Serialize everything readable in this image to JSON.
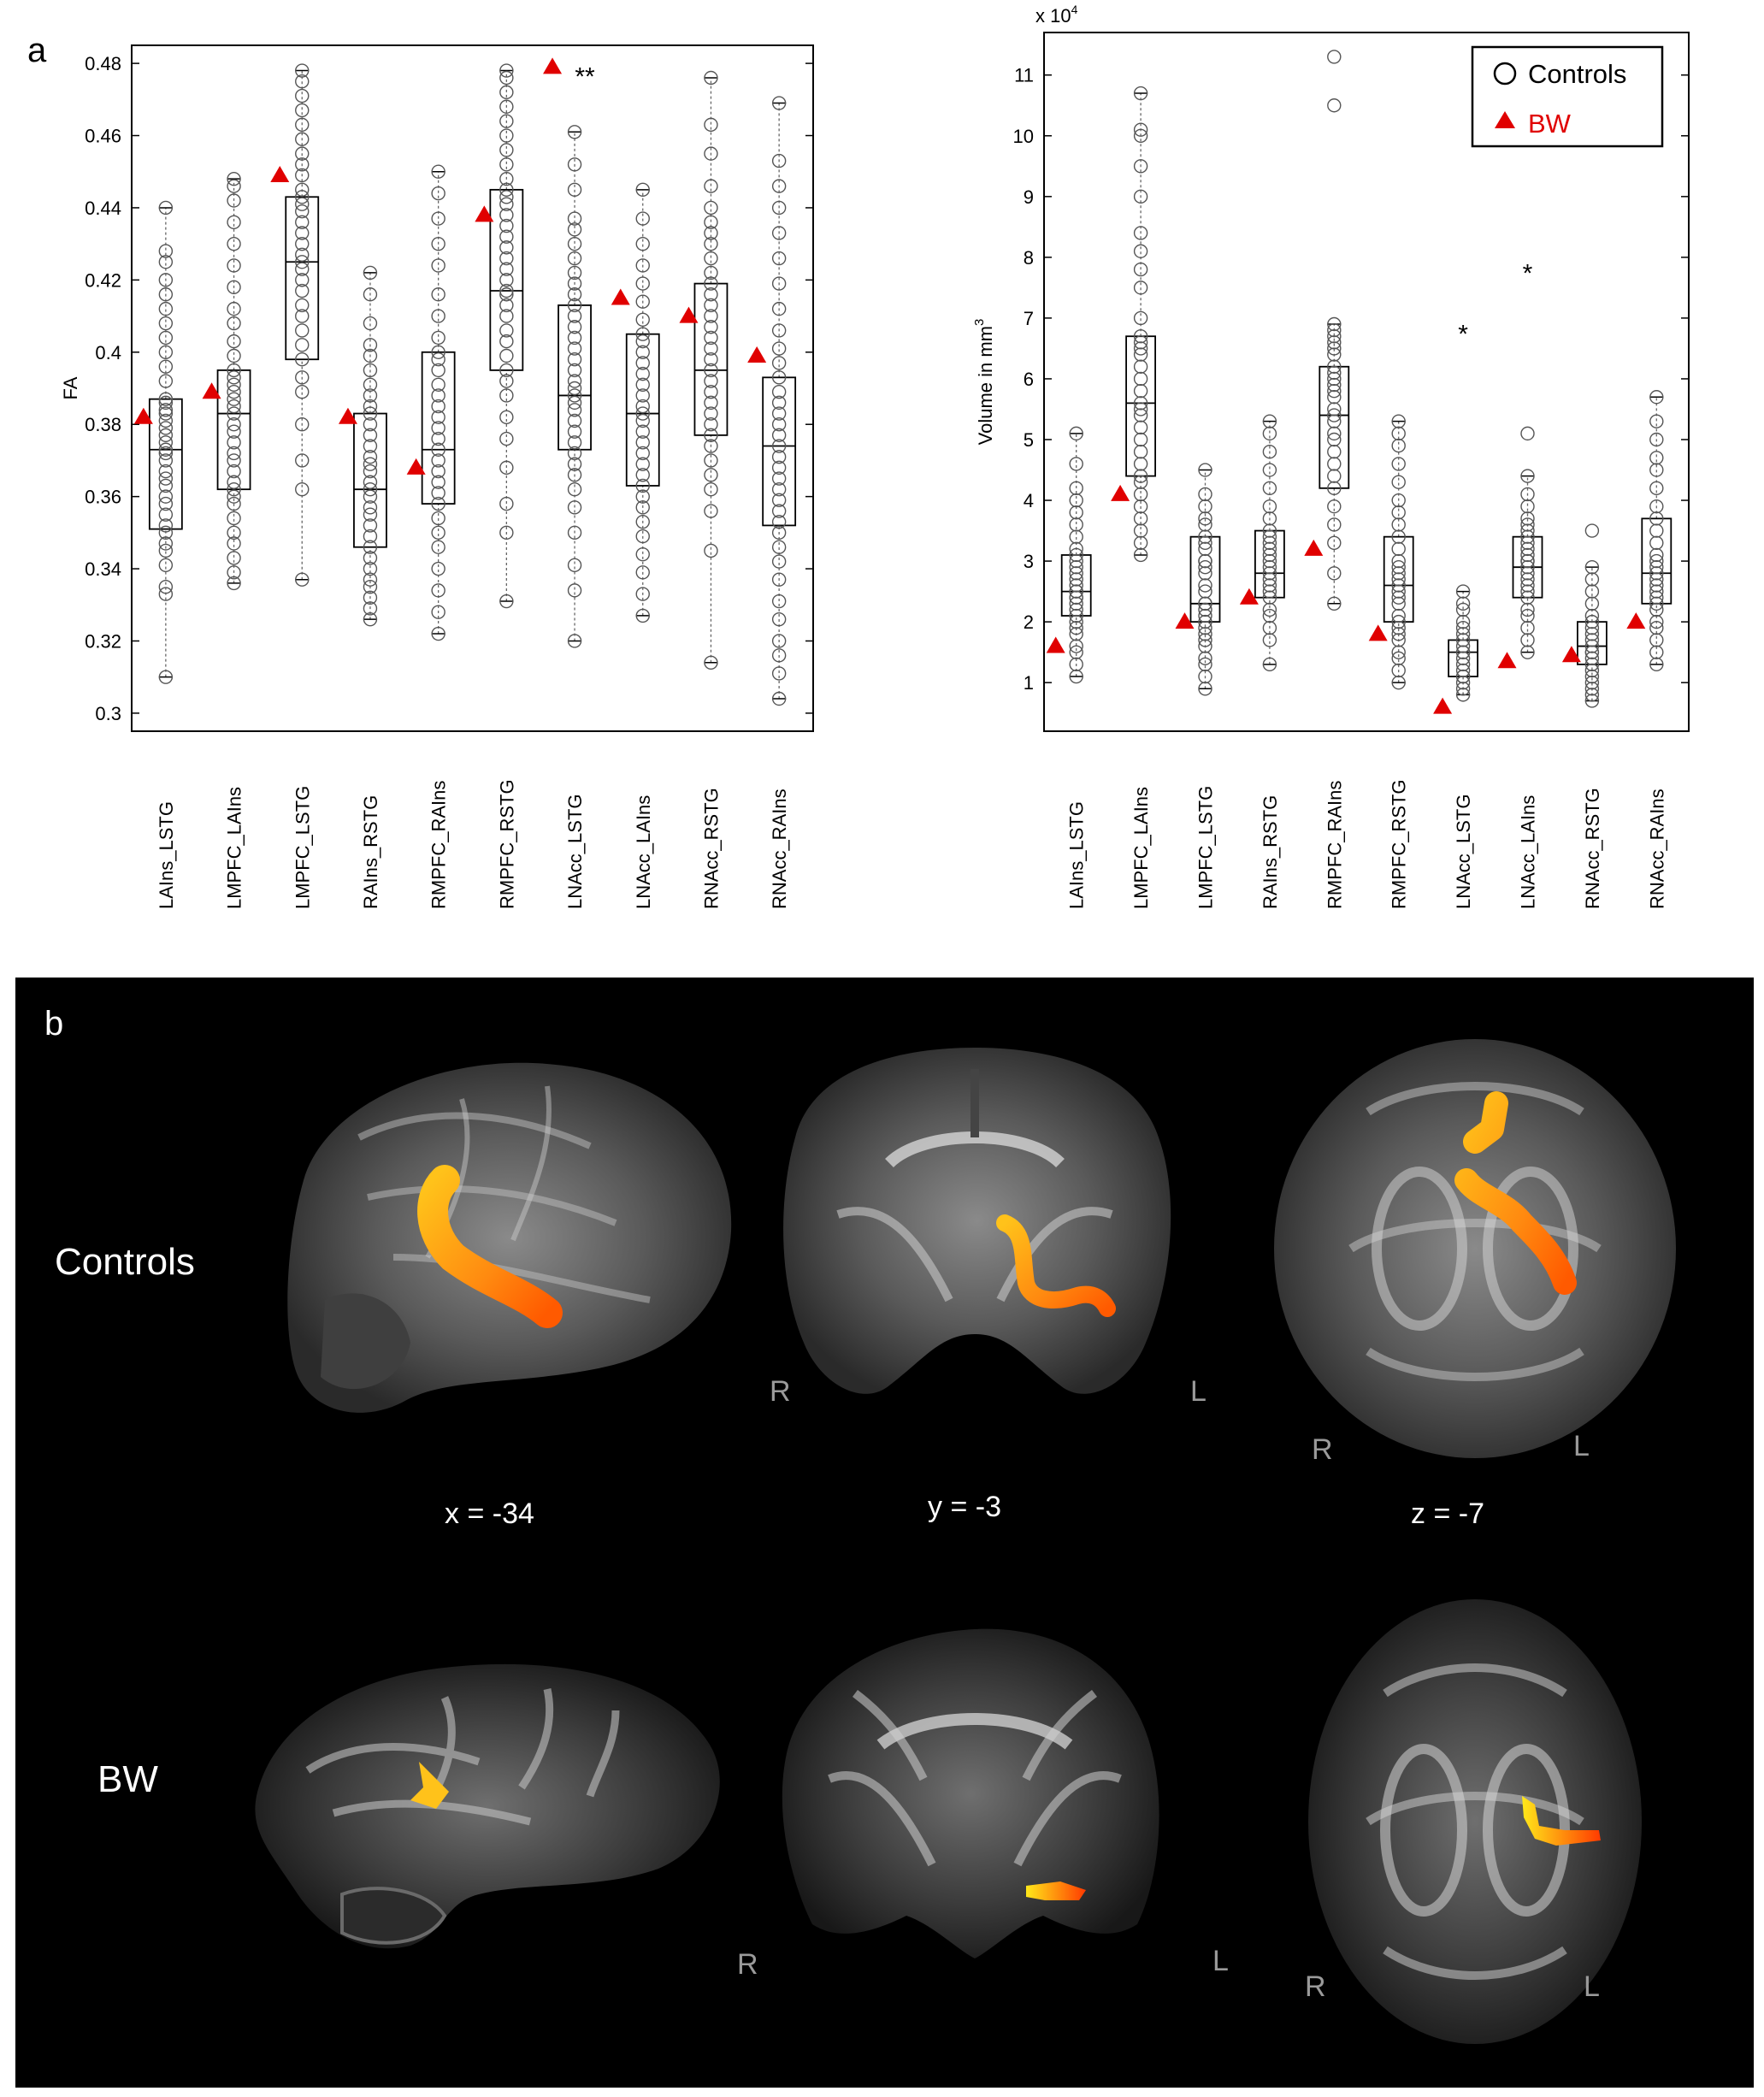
{
  "panels": {
    "a_label": "a",
    "b_label": "b"
  },
  "chart_data": [
    {
      "type": "boxplot",
      "panel": "a",
      "ylabel": "FA",
      "ylim": [
        0.295,
        0.485
      ],
      "yticks": [
        0.3,
        0.32,
        0.34,
        0.36,
        0.38,
        0.4,
        0.42,
        0.44,
        0.46,
        0.48
      ],
      "ytick_labels": [
        "0.3",
        "0.32",
        "0.34",
        "0.36",
        "0.38",
        "0.4",
        "0.42",
        "0.44",
        "0.46",
        "0.48"
      ],
      "categories": [
        "LAIns_LSTG",
        "LMPFC_LAIns",
        "LMPFC_LSTG",
        "RAIns_RSTG",
        "RMPFC_RAIns",
        "RMPFC_RSTG",
        "LNAcc_LSTG",
        "LNAcc_LAIns",
        "RNAcc_RSTG",
        "RNAcc_RAIns"
      ],
      "boxes": [
        {
          "whisker_low": 0.31,
          "q1": 0.351,
          "median": 0.373,
          "q3": 0.387,
          "whisker_high": 0.44
        },
        {
          "whisker_low": 0.336,
          "q1": 0.362,
          "median": 0.383,
          "q3": 0.395,
          "whisker_high": 0.448
        },
        {
          "whisker_low": 0.337,
          "q1": 0.398,
          "median": 0.425,
          "q3": 0.443,
          "whisker_high": 0.478
        },
        {
          "whisker_low": 0.326,
          "q1": 0.346,
          "median": 0.362,
          "q3": 0.383,
          "whisker_high": 0.422
        },
        {
          "whisker_low": 0.322,
          "q1": 0.358,
          "median": 0.373,
          "q3": 0.4,
          "whisker_high": 0.45
        },
        {
          "whisker_low": 0.331,
          "q1": 0.395,
          "median": 0.417,
          "q3": 0.445,
          "whisker_high": 0.478
        },
        {
          "whisker_low": 0.32,
          "q1": 0.373,
          "median": 0.388,
          "q3": 0.413,
          "whisker_high": 0.461
        },
        {
          "whisker_low": 0.327,
          "q1": 0.363,
          "median": 0.383,
          "q3": 0.405,
          "whisker_high": 0.445
        },
        {
          "whisker_low": 0.314,
          "q1": 0.377,
          "median": 0.395,
          "q3": 0.419,
          "whisker_high": 0.476
        },
        {
          "whisker_low": 0.304,
          "q1": 0.352,
          "median": 0.374,
          "q3": 0.393,
          "whisker_high": 0.469
        }
      ],
      "controls": [
        [
          0.31,
          0.333,
          0.335,
          0.341,
          0.345,
          0.347,
          0.35,
          0.352,
          0.355,
          0.358,
          0.36,
          0.363,
          0.365,
          0.367,
          0.37,
          0.372,
          0.373,
          0.375,
          0.377,
          0.379,
          0.381,
          0.383,
          0.384,
          0.386,
          0.387,
          0.392,
          0.396,
          0.4,
          0.404,
          0.408,
          0.412,
          0.416,
          0.42,
          0.425,
          0.428,
          0.44
        ],
        [
          0.336,
          0.339,
          0.343,
          0.347,
          0.35,
          0.354,
          0.358,
          0.36,
          0.362,
          0.364,
          0.367,
          0.37,
          0.372,
          0.375,
          0.378,
          0.38,
          0.383,
          0.385,
          0.387,
          0.389,
          0.391,
          0.393,
          0.395,
          0.399,
          0.403,
          0.408,
          0.412,
          0.418,
          0.424,
          0.43,
          0.436,
          0.442,
          0.446,
          0.448
        ],
        [
          0.337,
          0.362,
          0.37,
          0.38,
          0.389,
          0.393,
          0.398,
          0.402,
          0.406,
          0.41,
          0.413,
          0.417,
          0.42,
          0.423,
          0.425,
          0.427,
          0.43,
          0.433,
          0.436,
          0.439,
          0.441,
          0.443,
          0.445,
          0.449,
          0.452,
          0.455,
          0.459,
          0.463,
          0.467,
          0.471,
          0.475,
          0.478
        ],
        [
          0.326,
          0.329,
          0.332,
          0.335,
          0.337,
          0.34,
          0.343,
          0.346,
          0.349,
          0.352,
          0.355,
          0.357,
          0.36,
          0.362,
          0.364,
          0.367,
          0.369,
          0.371,
          0.374,
          0.377,
          0.38,
          0.383,
          0.385,
          0.388,
          0.391,
          0.395,
          0.399,
          0.402,
          0.408,
          0.416,
          0.422
        ],
        [
          0.322,
          0.328,
          0.334,
          0.34,
          0.346,
          0.35,
          0.354,
          0.358,
          0.361,
          0.364,
          0.367,
          0.37,
          0.373,
          0.376,
          0.379,
          0.382,
          0.385,
          0.388,
          0.391,
          0.395,
          0.398,
          0.4,
          0.404,
          0.41,
          0.416,
          0.424,
          0.43,
          0.437,
          0.444,
          0.45
        ],
        [
          0.331,
          0.35,
          0.358,
          0.368,
          0.376,
          0.382,
          0.388,
          0.392,
          0.395,
          0.399,
          0.403,
          0.406,
          0.41,
          0.413,
          0.416,
          0.417,
          0.42,
          0.423,
          0.426,
          0.429,
          0.432,
          0.435,
          0.438,
          0.441,
          0.443,
          0.445,
          0.448,
          0.452,
          0.456,
          0.46,
          0.464,
          0.468,
          0.472,
          0.476,
          0.478
        ],
        [
          0.32,
          0.334,
          0.341,
          0.35,
          0.357,
          0.362,
          0.366,
          0.369,
          0.372,
          0.375,
          0.378,
          0.381,
          0.384,
          0.386,
          0.388,
          0.39,
          0.392,
          0.395,
          0.398,
          0.401,
          0.404,
          0.407,
          0.41,
          0.413,
          0.416,
          0.419,
          0.422,
          0.426,
          0.43,
          0.434,
          0.437,
          0.445,
          0.452,
          0.461
        ],
        [
          0.327,
          0.333,
          0.339,
          0.344,
          0.349,
          0.353,
          0.357,
          0.36,
          0.363,
          0.366,
          0.369,
          0.372,
          0.375,
          0.378,
          0.381,
          0.383,
          0.385,
          0.388,
          0.391,
          0.394,
          0.397,
          0.4,
          0.403,
          0.405,
          0.409,
          0.414,
          0.419,
          0.424,
          0.43,
          0.437,
          0.445
        ],
        [
          0.314,
          0.345,
          0.356,
          0.362,
          0.366,
          0.37,
          0.374,
          0.377,
          0.38,
          0.383,
          0.386,
          0.389,
          0.392,
          0.395,
          0.398,
          0.401,
          0.404,
          0.407,
          0.41,
          0.413,
          0.416,
          0.419,
          0.422,
          0.426,
          0.43,
          0.433,
          0.436,
          0.44,
          0.446,
          0.455,
          0.463,
          0.476
        ],
        [
          0.304,
          0.311,
          0.316,
          0.32,
          0.326,
          0.331,
          0.337,
          0.342,
          0.346,
          0.35,
          0.353,
          0.356,
          0.359,
          0.362,
          0.365,
          0.368,
          0.371,
          0.374,
          0.377,
          0.38,
          0.383,
          0.386,
          0.389,
          0.393,
          0.397,
          0.401,
          0.406,
          0.412,
          0.419,
          0.426,
          0.433,
          0.44,
          0.446,
          0.453,
          0.469
        ]
      ],
      "bw": [
        0.382,
        0.389,
        0.449,
        0.382,
        0.368,
        0.438,
        0.479,
        0.415,
        0.41,
        0.399
      ],
      "annotations": [
        {
          "category_index": 6,
          "text": "**",
          "y": 0.474
        }
      ]
    },
    {
      "type": "boxplot",
      "panel": "a",
      "ylabel": "Volume in mm",
      "ylabel_superscript": "3",
      "y_multiplier_label": "x 10",
      "y_multiplier_exponent": "4",
      "ylim": [
        0.2,
        11.7
      ],
      "yticks": [
        1,
        2,
        3,
        4,
        5,
        6,
        7,
        8,
        9,
        10,
        11
      ],
      "ytick_labels": [
        "1",
        "2",
        "3",
        "4",
        "5",
        "6",
        "7",
        "8",
        "9",
        "10",
        "11"
      ],
      "categories": [
        "LAIns_LSTG",
        "LMPFC_LAIns",
        "LMPFC_LSTG",
        "RAIns_RSTG",
        "RMPFC_RAIns",
        "RMPFC_RSTG",
        "LNAcc_LSTG",
        "LNAcc_LAIns",
        "RNAcc_RSTG",
        "RNAcc_RAIns"
      ],
      "boxes": [
        {
          "whisker_low": 1.1,
          "q1": 2.1,
          "median": 2.5,
          "q3": 3.1,
          "whisker_high": 5.1
        },
        {
          "whisker_low": 3.1,
          "q1": 4.4,
          "median": 5.6,
          "q3": 6.7,
          "whisker_high": 10.7
        },
        {
          "whisker_low": 0.9,
          "q1": 2.0,
          "median": 2.3,
          "q3": 3.4,
          "whisker_high": 4.5
        },
        {
          "whisker_low": 1.3,
          "q1": 2.4,
          "median": 2.8,
          "q3": 3.5,
          "whisker_high": 5.3
        },
        {
          "whisker_low": 2.3,
          "q1": 4.2,
          "median": 5.4,
          "q3": 6.2,
          "whisker_high": 6.9
        },
        {
          "whisker_low": 1.0,
          "q1": 2.0,
          "median": 2.6,
          "q3": 3.4,
          "whisker_high": 5.3
        },
        {
          "whisker_low": 0.8,
          "q1": 1.1,
          "median": 1.5,
          "q3": 1.7,
          "whisker_high": 2.5
        },
        {
          "whisker_low": 1.5,
          "q1": 2.4,
          "median": 2.9,
          "q3": 3.4,
          "whisker_high": 4.4
        },
        {
          "whisker_low": 0.7,
          "q1": 1.3,
          "median": 1.6,
          "q3": 2.0,
          "whisker_high": 2.9
        },
        {
          "whisker_low": 1.3,
          "q1": 2.3,
          "median": 2.8,
          "q3": 3.7,
          "whisker_high": 5.7
        }
      ],
      "controls": [
        [
          1.1,
          1.3,
          1.5,
          1.6,
          1.8,
          1.9,
          2.0,
          2.1,
          2.2,
          2.3,
          2.4,
          2.4,
          2.5,
          2.5,
          2.6,
          2.7,
          2.8,
          2.9,
          3.0,
          3.1,
          3.2,
          3.4,
          3.6,
          3.8,
          4.0,
          4.2,
          4.6,
          5.1
        ],
        [
          3.1,
          3.3,
          3.5,
          3.7,
          3.9,
          4.1,
          4.3,
          4.4,
          4.6,
          4.8,
          5.0,
          5.2,
          5.4,
          5.5,
          5.6,
          5.8,
          6.0,
          6.2,
          6.4,
          6.5,
          6.6,
          6.7,
          7.0,
          7.5,
          7.8,
          8.1,
          8.4,
          9.0,
          9.5,
          10.0,
          10.1,
          10.7
        ],
        [
          0.9,
          1.1,
          1.3,
          1.4,
          1.6,
          1.7,
          1.8,
          1.9,
          2.0,
          2.1,
          2.2,
          2.3,
          2.3,
          2.5,
          2.6,
          2.8,
          2.9,
          3.0,
          3.0,
          3.2,
          3.3,
          3.4,
          3.6,
          3.7,
          3.9,
          4.1,
          4.5
        ],
        [
          1.3,
          1.7,
          1.9,
          2.1,
          2.2,
          2.4,
          2.5,
          2.6,
          2.7,
          2.8,
          2.9,
          3.0,
          3.1,
          3.2,
          3.3,
          3.4,
          3.5,
          3.7,
          3.9,
          4.2,
          4.5,
          4.8,
          5.1,
          5.3
        ],
        [
          2.3,
          2.8,
          3.3,
          3.6,
          3.9,
          4.2,
          4.4,
          4.6,
          4.8,
          5.0,
          5.1,
          5.3,
          5.4,
          5.5,
          5.7,
          5.8,
          5.9,
          6.0,
          6.1,
          6.2,
          6.4,
          6.5,
          6.6,
          6.7,
          6.8,
          6.9,
          10.5,
          11.3
        ],
        [
          1.0,
          1.2,
          1.4,
          1.5,
          1.7,
          1.8,
          1.9,
          2.0,
          2.1,
          2.3,
          2.4,
          2.5,
          2.6,
          2.7,
          2.8,
          2.9,
          3.0,
          3.2,
          3.4,
          3.6,
          3.8,
          4.0,
          4.3,
          4.6,
          4.9,
          5.1,
          5.3
        ],
        [
          0.8,
          0.9,
          1.0,
          1.1,
          1.1,
          1.2,
          1.3,
          1.4,
          1.5,
          1.5,
          1.6,
          1.7,
          1.8,
          1.9,
          2.0,
          2.2,
          2.3,
          2.5
        ],
        [
          1.5,
          1.7,
          1.9,
          2.1,
          2.2,
          2.4,
          2.5,
          2.6,
          2.7,
          2.8,
          2.9,
          3.0,
          3.0,
          3.1,
          3.2,
          3.3,
          3.4,
          3.5,
          3.6,
          3.7,
          3.9,
          4.1,
          4.4,
          5.1
        ],
        [
          0.7,
          0.8,
          0.9,
          1.0,
          1.1,
          1.2,
          1.3,
          1.4,
          1.5,
          1.5,
          1.6,
          1.7,
          1.8,
          1.9,
          2.0,
          2.1,
          2.3,
          2.5,
          2.7,
          2.9,
          3.5
        ],
        [
          1.3,
          1.5,
          1.7,
          1.9,
          2.0,
          2.2,
          2.3,
          2.4,
          2.5,
          2.6,
          2.7,
          2.8,
          2.9,
          3.0,
          3.1,
          3.3,
          3.5,
          3.7,
          3.9,
          4.2,
          4.5,
          4.7,
          5.0,
          5.3,
          5.7
        ]
      ],
      "bw": [
        1.6,
        4.1,
        2.0,
        2.4,
        3.2,
        1.8,
        0.6,
        1.35,
        1.45,
        2.0
      ],
      "annotations": [
        {
          "category_index": 6,
          "text": "*",
          "y": 6.6
        },
        {
          "category_index": 7,
          "text": "*",
          "y": 7.6
        }
      ],
      "legend": {
        "placement": "top-right",
        "entries": [
          "Controls",
          "BW"
        ]
      }
    }
  ],
  "legend": {
    "controls_label": "Controls",
    "bw_label": "BW"
  },
  "colors": {
    "bw_marker": "#e00000",
    "controls_marker": "#555555",
    "tract": "#ff8a1a"
  },
  "panel_b": {
    "row_labels": [
      "Controls",
      "BW"
    ],
    "coords": [
      "x = -34",
      "y = -3",
      "z = -7"
    ],
    "orient_R": "R",
    "orient_L": "L"
  }
}
